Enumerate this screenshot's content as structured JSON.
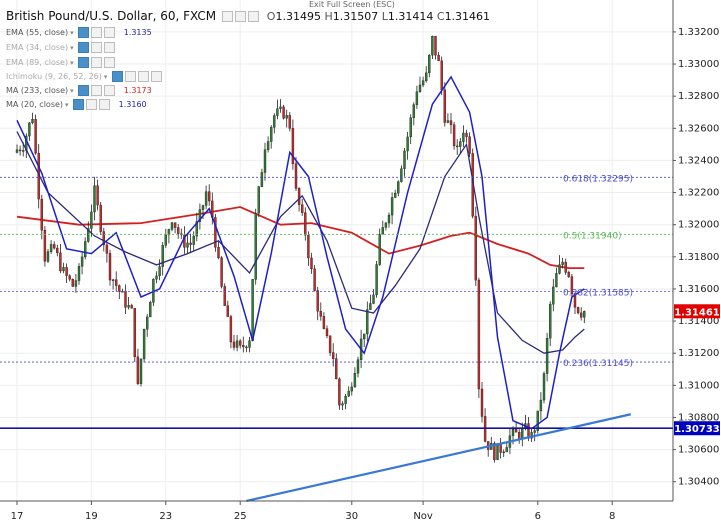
{
  "header": {
    "symbol": "British Pound/U.S. Dollar, 60, FXCM",
    "o_label": "O",
    "o": "1.31495",
    "h_label": "H",
    "h": "1.31507",
    "l_label": "L",
    "l": "1.31414",
    "c_label": "C",
    "c": "1.31461"
  },
  "toolbar": {
    "exit_fullscreen": "Exit Full Screen (ESC)"
  },
  "indicators": [
    {
      "name": "EMA (55, close)",
      "value": "1.3135",
      "color": "#1f1fa8",
      "visible": true
    },
    {
      "name": "EMA (34, close)",
      "value": "",
      "color": "#999999",
      "visible": false
    },
    {
      "name": "EMA (89, close)",
      "value": "",
      "color": "#999999",
      "visible": false
    },
    {
      "name": "Ichimoku (9, 26, 52, 26)",
      "value": "",
      "color": "#999999",
      "visible": false
    },
    {
      "name": "MA (233, close)",
      "value": "1.3173",
      "color": "#d42020",
      "visible": true
    },
    {
      "name": "MA (20, close)",
      "value": "1.3160",
      "color": "#1f1fa8",
      "visible": true
    }
  ],
  "chart_data": {
    "type": "candlestick",
    "x_ticks": [
      {
        "label": "17",
        "i": 0
      },
      {
        "label": "19",
        "i": 24
      },
      {
        "label": "23",
        "i": 48
      },
      {
        "label": "25",
        "i": 72
      },
      {
        "label": "30",
        "i": 108
      },
      {
        "label": "Nov",
        "i": 131
      },
      {
        "label": "6",
        "i": 168
      },
      {
        "label": "8",
        "i": 192
      }
    ],
    "y_ticks": [
      "1.30400",
      "1.30600",
      "1.30800",
      "1.31000",
      "1.31200",
      "1.31400",
      "1.31600",
      "1.31800",
      "1.32000",
      "1.32200",
      "1.32400",
      "1.32600",
      "1.32800",
      "1.33000",
      "1.33200"
    ],
    "ylim": [
      1.3028,
      1.3338
    ],
    "price_label": {
      "value": "1.31461",
      "color": "#e00000"
    },
    "support_label": {
      "value": "1.30733",
      "color": "#0000c0"
    },
    "horizontal_line": {
      "value": 1.30733,
      "color": "#1414a0"
    },
    "trendline": {
      "from": [
        74,
        1.3028
      ],
      "to": [
        198,
        1.3082
      ],
      "color": "#3a78d8"
    },
    "fib_levels": [
      {
        "value": 1.32295,
        "label": "0.618(1.32295)",
        "color": "#4a4ad0"
      },
      {
        "value": 1.3194,
        "label": "0.5(1.31940)",
        "color": "#5cb85c"
      },
      {
        "value": 1.31585,
        "label": "0.382(1.31585)",
        "color": "#4a4ad0"
      },
      {
        "value": 1.31145,
        "label": "0.236(1.31145)",
        "color": "#4a4ad0"
      }
    ],
    "key_points": [
      [
        0,
        1.3245
      ],
      [
        3,
        1.325
      ],
      [
        6,
        1.3268
      ],
      [
        8,
        1.322
      ],
      [
        10,
        1.318
      ],
      [
        13,
        1.3185
      ],
      [
        16,
        1.317
      ],
      [
        19,
        1.3162
      ],
      [
        21,
        1.317
      ],
      [
        24,
        1.32
      ],
      [
        26,
        1.322
      ],
      [
        28,
        1.32
      ],
      [
        31,
        1.317
      ],
      [
        35,
        1.3155
      ],
      [
        38,
        1.3145
      ],
      [
        40,
        1.3098
      ],
      [
        42,
        1.3135
      ],
      [
        45,
        1.3165
      ],
      [
        48,
        1.3185
      ],
      [
        51,
        1.3205
      ],
      [
        54,
        1.319
      ],
      [
        57,
        1.3188
      ],
      [
        60,
        1.3205
      ],
      [
        62,
        1.322
      ],
      [
        64,
        1.3205
      ],
      [
        67,
        1.316
      ],
      [
        70,
        1.3128
      ],
      [
        73,
        1.3122
      ],
      [
        76,
        1.313
      ],
      [
        78,
        1.3205
      ],
      [
        81,
        1.325
      ],
      [
        84,
        1.3268
      ],
      [
        87,
        1.327
      ],
      [
        89,
        1.3262
      ],
      [
        91,
        1.322
      ],
      [
        94,
        1.3195
      ],
      [
        97,
        1.3158
      ],
      [
        100,
        1.3132
      ],
      [
        103,
        1.3118
      ],
      [
        105,
        1.3088
      ],
      [
        108,
        1.3095
      ],
      [
        110,
        1.3112
      ],
      [
        113,
        1.3135
      ],
      [
        116,
        1.3158
      ],
      [
        118,
        1.319
      ],
      [
        121,
        1.321
      ],
      [
        124,
        1.323
      ],
      [
        127,
        1.3255
      ],
      [
        130,
        1.3285
      ],
      [
        133,
        1.3292
      ],
      [
        135,
        1.3315
      ],
      [
        137,
        1.33
      ],
      [
        139,
        1.3268
      ],
      [
        141,
        1.3258
      ],
      [
        143,
        1.3245
      ],
      [
        145,
        1.326
      ],
      [
        147,
        1.3248
      ],
      [
        149,
        1.317
      ],
      [
        150,
        1.31
      ],
      [
        152,
        1.3066
      ],
      [
        155,
        1.3058
      ],
      [
        158,
        1.3062
      ],
      [
        160,
        1.3068
      ],
      [
        163,
        1.307
      ],
      [
        165,
        1.3072
      ],
      [
        167,
        1.3068
      ],
      [
        169,
        1.308
      ],
      [
        171,
        1.3105
      ],
      [
        173,
        1.315
      ],
      [
        175,
        1.3168
      ],
      [
        177,
        1.3177
      ],
      [
        179,
        1.317
      ],
      [
        181,
        1.315
      ],
      [
        183,
        1.3146
      ]
    ],
    "ma233": [
      [
        0,
        1.3205
      ],
      [
        20,
        1.32
      ],
      [
        40,
        1.3201
      ],
      [
        60,
        1.3207
      ],
      [
        72,
        1.3211
      ],
      [
        85,
        1.32
      ],
      [
        95,
        1.3201
      ],
      [
        108,
        1.3195
      ],
      [
        120,
        1.3182
      ],
      [
        130,
        1.3187
      ],
      [
        140,
        1.3193
      ],
      [
        146,
        1.3195
      ],
      [
        155,
        1.3188
      ],
      [
        165,
        1.3182
      ],
      [
        172,
        1.3175
      ],
      [
        178,
        1.3173
      ],
      [
        183,
        1.3173
      ]
    ],
    "ema55": [
      [
        0,
        1.3258
      ],
      [
        10,
        1.322
      ],
      [
        25,
        1.3193
      ],
      [
        35,
        1.3183
      ],
      [
        45,
        1.3175
      ],
      [
        55,
        1.3182
      ],
      [
        65,
        1.319
      ],
      [
        75,
        1.317
      ],
      [
        85,
        1.3205
      ],
      [
        92,
        1.3218
      ],
      [
        100,
        1.319
      ],
      [
        108,
        1.3148
      ],
      [
        115,
        1.3145
      ],
      [
        122,
        1.3162
      ],
      [
        130,
        1.3185
      ],
      [
        138,
        1.323
      ],
      [
        145,
        1.325
      ],
      [
        149,
        1.3205
      ],
      [
        155,
        1.3145
      ],
      [
        163,
        1.3128
      ],
      [
        170,
        1.312
      ],
      [
        176,
        1.3122
      ],
      [
        180,
        1.313
      ],
      [
        183,
        1.3135
      ]
    ],
    "ma20": [
      [
        0,
        1.3265
      ],
      [
        8,
        1.3232
      ],
      [
        16,
        1.3185
      ],
      [
        24,
        1.3182
      ],
      [
        32,
        1.3195
      ],
      [
        40,
        1.3155
      ],
      [
        46,
        1.316
      ],
      [
        54,
        1.3192
      ],
      [
        62,
        1.321
      ],
      [
        70,
        1.3168
      ],
      [
        76,
        1.3128
      ],
      [
        82,
        1.3182
      ],
      [
        88,
        1.3245
      ],
      [
        94,
        1.323
      ],
      [
        100,
        1.318
      ],
      [
        106,
        1.3135
      ],
      [
        112,
        1.312
      ],
      [
        118,
        1.3155
      ],
      [
        126,
        1.322
      ],
      [
        134,
        1.3275
      ],
      [
        140,
        1.3292
      ],
      [
        146,
        1.327
      ],
      [
        150,
        1.323
      ],
      [
        155,
        1.313
      ],
      [
        160,
        1.3078
      ],
      [
        166,
        1.3073
      ],
      [
        171,
        1.308
      ],
      [
        175,
        1.312
      ],
      [
        179,
        1.3155
      ],
      [
        183,
        1.316
      ]
    ]
  }
}
